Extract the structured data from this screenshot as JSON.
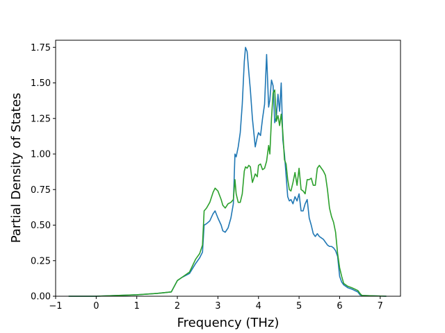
{
  "chart_data": {
    "type": "line",
    "title": "",
    "xlabel": "Frequency (THz)",
    "ylabel": "Partial Density of States",
    "xlim": [
      -1.0,
      7.5
    ],
    "ylim": [
      0.0,
      1.8
    ],
    "xticks": [
      -1,
      0,
      1,
      2,
      3,
      4,
      5,
      6,
      7
    ],
    "xtick_labels": [
      "−1",
      "0",
      "1",
      "2",
      "3",
      "4",
      "5",
      "6",
      "7"
    ],
    "yticks": [
      0.0,
      0.25,
      0.5,
      0.75,
      1.0,
      1.25,
      1.5,
      1.75
    ],
    "ytick_labels": [
      "0.00",
      "0.25",
      "0.50",
      "0.75",
      "1.00",
      "1.25",
      "1.50",
      "1.75"
    ],
    "grid": false,
    "series": [
      {
        "color": "#1f77b4",
        "x": [
          -0.68,
          0.0,
          0.5,
          1.0,
          1.5,
          1.85,
          2.0,
          2.1,
          2.3,
          2.45,
          2.55,
          2.62,
          2.66,
          2.72,
          2.8,
          2.88,
          2.93,
          3.0,
          3.08,
          3.12,
          3.18,
          3.25,
          3.32,
          3.38,
          3.42,
          3.45,
          3.5,
          3.55,
          3.6,
          3.65,
          3.68,
          3.72,
          3.76,
          3.8,
          3.85,
          3.92,
          3.97,
          4.0,
          4.05,
          4.1,
          4.15,
          4.2,
          4.25,
          4.28,
          4.32,
          4.36,
          4.4,
          4.44,
          4.48,
          4.52,
          4.56,
          4.6,
          4.64,
          4.68,
          4.72,
          4.76,
          4.8,
          4.85,
          4.9,
          4.95,
          5.0,
          5.05,
          5.1,
          5.15,
          5.2,
          5.25,
          5.3,
          5.35,
          5.4,
          5.45,
          5.5,
          5.55,
          5.6,
          5.65,
          5.7,
          5.75,
          5.8,
          5.85,
          5.9,
          5.95,
          6.0,
          6.05,
          6.1,
          6.2,
          6.3,
          6.45,
          6.5,
          6.55,
          7.15
        ],
        "y": [
          0.0,
          0.0,
          0.005,
          0.01,
          0.02,
          0.03,
          0.11,
          0.13,
          0.16,
          0.23,
          0.27,
          0.31,
          0.5,
          0.51,
          0.53,
          0.58,
          0.6,
          0.55,
          0.5,
          0.46,
          0.45,
          0.48,
          0.55,
          0.65,
          1.0,
          0.98,
          1.05,
          1.15,
          1.35,
          1.65,
          1.75,
          1.72,
          1.58,
          1.45,
          1.25,
          1.05,
          1.12,
          1.15,
          1.13,
          1.25,
          1.35,
          1.7,
          1.33,
          1.38,
          1.52,
          1.48,
          1.22,
          1.26,
          1.42,
          1.3,
          1.5,
          1.1,
          1.0,
          0.85,
          0.7,
          0.67,
          0.68,
          0.65,
          0.7,
          0.67,
          0.72,
          0.6,
          0.6,
          0.65,
          0.68,
          0.55,
          0.5,
          0.44,
          0.42,
          0.44,
          0.42,
          0.41,
          0.4,
          0.38,
          0.36,
          0.35,
          0.35,
          0.34,
          0.32,
          0.28,
          0.14,
          0.1,
          0.08,
          0.06,
          0.05,
          0.03,
          0.01,
          0.005,
          0.0
        ]
      },
      {
        "color": "#2ca02c",
        "x": [
          -0.68,
          0.0,
          0.5,
          1.0,
          1.5,
          1.85,
          2.0,
          2.1,
          2.3,
          2.45,
          2.55,
          2.62,
          2.66,
          2.72,
          2.8,
          2.88,
          2.93,
          3.0,
          3.08,
          3.12,
          3.18,
          3.25,
          3.32,
          3.38,
          3.42,
          3.45,
          3.5,
          3.55,
          3.6,
          3.65,
          3.68,
          3.72,
          3.76,
          3.8,
          3.85,
          3.92,
          3.97,
          4.0,
          4.05,
          4.1,
          4.15,
          4.2,
          4.25,
          4.28,
          4.32,
          4.36,
          4.4,
          4.44,
          4.48,
          4.52,
          4.56,
          4.6,
          4.64,
          4.68,
          4.72,
          4.76,
          4.8,
          4.85,
          4.9,
          4.95,
          5.0,
          5.05,
          5.1,
          5.15,
          5.2,
          5.25,
          5.3,
          5.35,
          5.4,
          5.45,
          5.5,
          5.55,
          5.6,
          5.65,
          5.7,
          5.75,
          5.8,
          5.85,
          5.9,
          5.95,
          6.0,
          6.05,
          6.1,
          6.2,
          6.3,
          6.45,
          6.5,
          6.55,
          7.15
        ],
        "y": [
          0.0,
          0.0,
          0.005,
          0.01,
          0.02,
          0.03,
          0.11,
          0.13,
          0.17,
          0.26,
          0.3,
          0.36,
          0.6,
          0.62,
          0.66,
          0.73,
          0.76,
          0.74,
          0.68,
          0.64,
          0.62,
          0.65,
          0.66,
          0.68,
          0.82,
          0.72,
          0.66,
          0.66,
          0.72,
          0.88,
          0.91,
          0.9,
          0.92,
          0.91,
          0.8,
          0.86,
          0.84,
          0.92,
          0.93,
          0.89,
          0.9,
          0.95,
          1.06,
          1.0,
          1.25,
          1.43,
          1.45,
          1.23,
          1.27,
          1.2,
          1.28,
          1.15,
          0.96,
          0.93,
          0.82,
          0.75,
          0.74,
          0.8,
          0.87,
          0.78,
          0.9,
          0.75,
          0.74,
          0.72,
          0.82,
          0.82,
          0.83,
          0.78,
          0.78,
          0.9,
          0.92,
          0.9,
          0.88,
          0.85,
          0.75,
          0.62,
          0.56,
          0.52,
          0.45,
          0.3,
          0.2,
          0.14,
          0.09,
          0.07,
          0.06,
          0.04,
          0.02,
          0.005,
          0.0
        ]
      }
    ]
  }
}
